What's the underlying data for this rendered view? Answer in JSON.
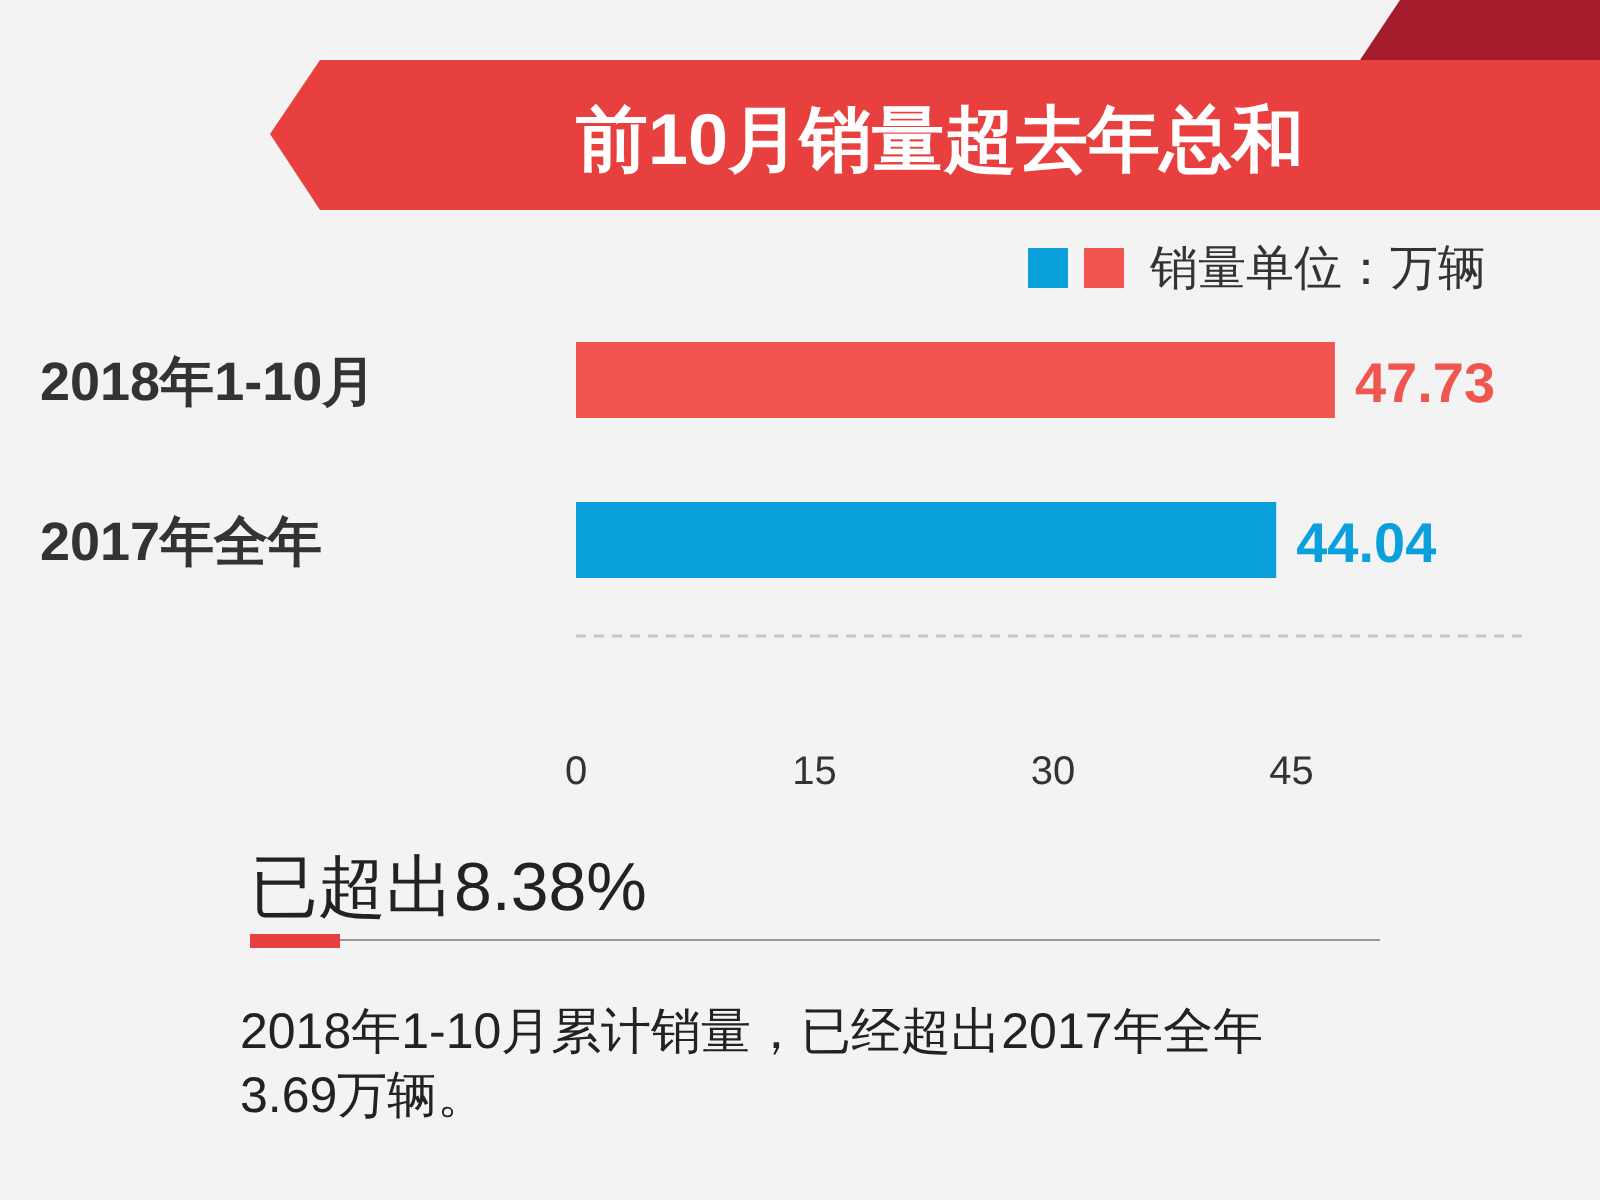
{
  "chart_data": {
    "type": "bar",
    "orientation": "horizontal",
    "title": "前10月销量超去年总和",
    "categories": [
      "2018年1-10月",
      "2017年全年"
    ],
    "values": [
      47.73,
      44.04
    ],
    "colors": [
      "#f0564f",
      "#0aa0dc"
    ],
    "xlim": [
      0,
      60
    ],
    "xticks": [
      0,
      15,
      30,
      45
    ],
    "data_labels": true,
    "grid": false,
    "annotations": [
      "销量单位：万辆",
      "已超出8.38%",
      "2018年1-10月累计销量，已经超出2017年全年3.69万辆。"
    ]
  }
}
